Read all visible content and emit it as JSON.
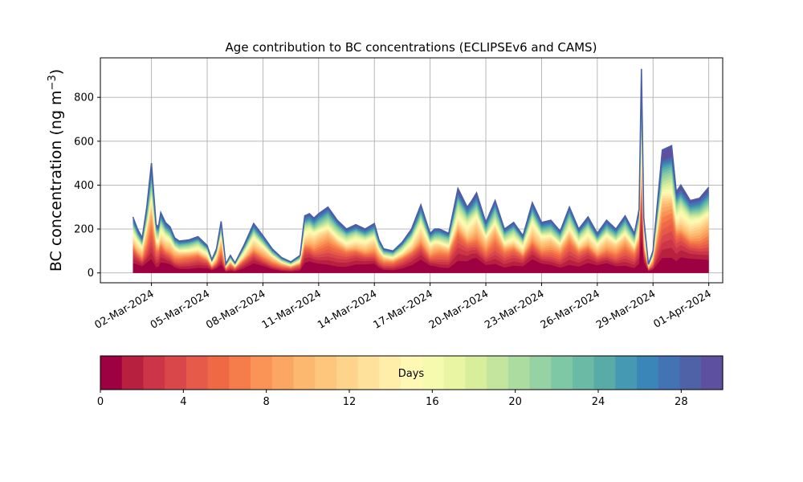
{
  "chart_data": {
    "type": "area",
    "title": "Age contribution to BC concentrations (ECLIPSEv6 and CAMS)",
    "ylabel": "BC concentration (ng m",
    "ylabel_superscript": "−3",
    "ylabel_close": ")",
    "xlabel": "",
    "ylim": [
      -45,
      980
    ],
    "yticks": [
      0,
      200,
      400,
      600,
      800
    ],
    "xlim": [
      "2024-02-28T06:00",
      "2024-04-01T18:00"
    ],
    "xticks": [
      "2024-03-02",
      "2024-03-05",
      "2024-03-08",
      "2024-03-11",
      "2024-03-14",
      "2024-03-17",
      "2024-03-20",
      "2024-03-23",
      "2024-03-26",
      "2024-03-29",
      "2024-04-01"
    ],
    "xtick_labels": [
      "02-Mar-2024",
      "05-Mar-2024",
      "08-Mar-2024",
      "11-Mar-2024",
      "14-Mar-2024",
      "17-Mar-2024",
      "20-Mar-2024",
      "23-Mar-2024",
      "26-Mar-2024",
      "29-Mar-2024",
      "01-Apr-2024"
    ],
    "grid": true,
    "total_series": {
      "x": [
        "2024-03-01T00:00",
        "2024-03-01T06:00",
        "2024-03-01T12:00",
        "2024-03-01T18:00",
        "2024-03-02T00:00",
        "2024-03-02T06:00",
        "2024-03-02T09:00",
        "2024-03-02T12:00",
        "2024-03-02T18:00",
        "2024-03-03T00:00",
        "2024-03-03T06:00",
        "2024-03-03T12:00",
        "2024-03-04T00:00",
        "2024-03-04T12:00",
        "2024-03-05T00:00",
        "2024-03-05T06:00",
        "2024-03-05T12:00",
        "2024-03-05T18:00",
        "2024-03-06T00:00",
        "2024-03-06T06:00",
        "2024-03-06T12:00",
        "2024-03-07T00:00",
        "2024-03-07T12:00",
        "2024-03-08T00:00",
        "2024-03-08T12:00",
        "2024-03-09T00:00",
        "2024-03-09T12:00",
        "2024-03-10T00:00",
        "2024-03-10T06:00",
        "2024-03-10T12:00",
        "2024-03-10T18:00",
        "2024-03-11T00:00",
        "2024-03-11T12:00",
        "2024-03-12T00:00",
        "2024-03-12T12:00",
        "2024-03-13T00:00",
        "2024-03-13T12:00",
        "2024-03-14T00:00",
        "2024-03-14T06:00",
        "2024-03-14T12:00",
        "2024-03-15T00:00",
        "2024-03-15T12:00",
        "2024-03-16T00:00",
        "2024-03-16T12:00",
        "2024-03-17T00:00",
        "2024-03-17T06:00",
        "2024-03-17T12:00",
        "2024-03-18T00:00",
        "2024-03-18T12:00",
        "2024-03-19T00:00",
        "2024-03-19T06:00",
        "2024-03-19T12:00",
        "2024-03-20T00:00",
        "2024-03-20T12:00",
        "2024-03-21T00:00",
        "2024-03-21T12:00",
        "2024-03-22T00:00",
        "2024-03-22T12:00",
        "2024-03-23T00:00",
        "2024-03-23T12:00",
        "2024-03-24T00:00",
        "2024-03-24T12:00",
        "2024-03-25T00:00",
        "2024-03-25T12:00",
        "2024-03-26T00:00",
        "2024-03-26T12:00",
        "2024-03-27T00:00",
        "2024-03-27T12:00",
        "2024-03-28T00:00",
        "2024-03-28T06:00",
        "2024-03-28T09:00",
        "2024-03-28T12:00",
        "2024-03-28T18:00",
        "2024-03-29T00:00",
        "2024-03-29T12:00",
        "2024-03-30T00:00",
        "2024-03-30T06:00",
        "2024-03-30T12:00",
        "2024-03-31T00:00",
        "2024-03-31T12:00",
        "2024-04-01T00:00"
      ],
      "values": [
        255,
        200,
        160,
        300,
        500,
        220,
        210,
        275,
        230,
        210,
        160,
        145,
        150,
        165,
        125,
        60,
        110,
        235,
        40,
        80,
        45,
        130,
        225,
        170,
        110,
        70,
        50,
        80,
        260,
        270,
        250,
        270,
        300,
        240,
        200,
        220,
        200,
        225,
        150,
        110,
        100,
        140,
        200,
        310,
        180,
        200,
        200,
        180,
        385,
        300,
        330,
        365,
        230,
        330,
        200,
        230,
        170,
        320,
        230,
        240,
        190,
        300,
        200,
        255,
        180,
        240,
        200,
        260,
        180,
        290,
        930,
        250,
        40,
        100,
        560,
        580,
        370,
        400,
        330,
        340,
        390
      ]
    },
    "age_bins": {
      "label": "Days",
      "min": 0,
      "max": 30,
      "ticks": [
        0,
        4,
        8,
        12,
        16,
        20,
        24,
        28
      ],
      "colors": [
        "#9e0142",
        "#b8203f",
        "#cc3548",
        "#da474b",
        "#e55a49",
        "#ee6944",
        "#f57d4b",
        "#f99356",
        "#fca663",
        "#fdb86f",
        "#fec67d",
        "#fed48d",
        "#fee19b",
        "#feeea9",
        "#fff8b4",
        "#f5faaf",
        "#e9f5a3",
        "#d9ee9b",
        "#c4e59d",
        "#addca1",
        "#96d2a4",
        "#7fc8a5",
        "#6bbaa6",
        "#59aba8",
        "#4599b2",
        "#3a86b8",
        "#4473b3",
        "#5062a7",
        "#5d509f"
      ]
    }
  }
}
